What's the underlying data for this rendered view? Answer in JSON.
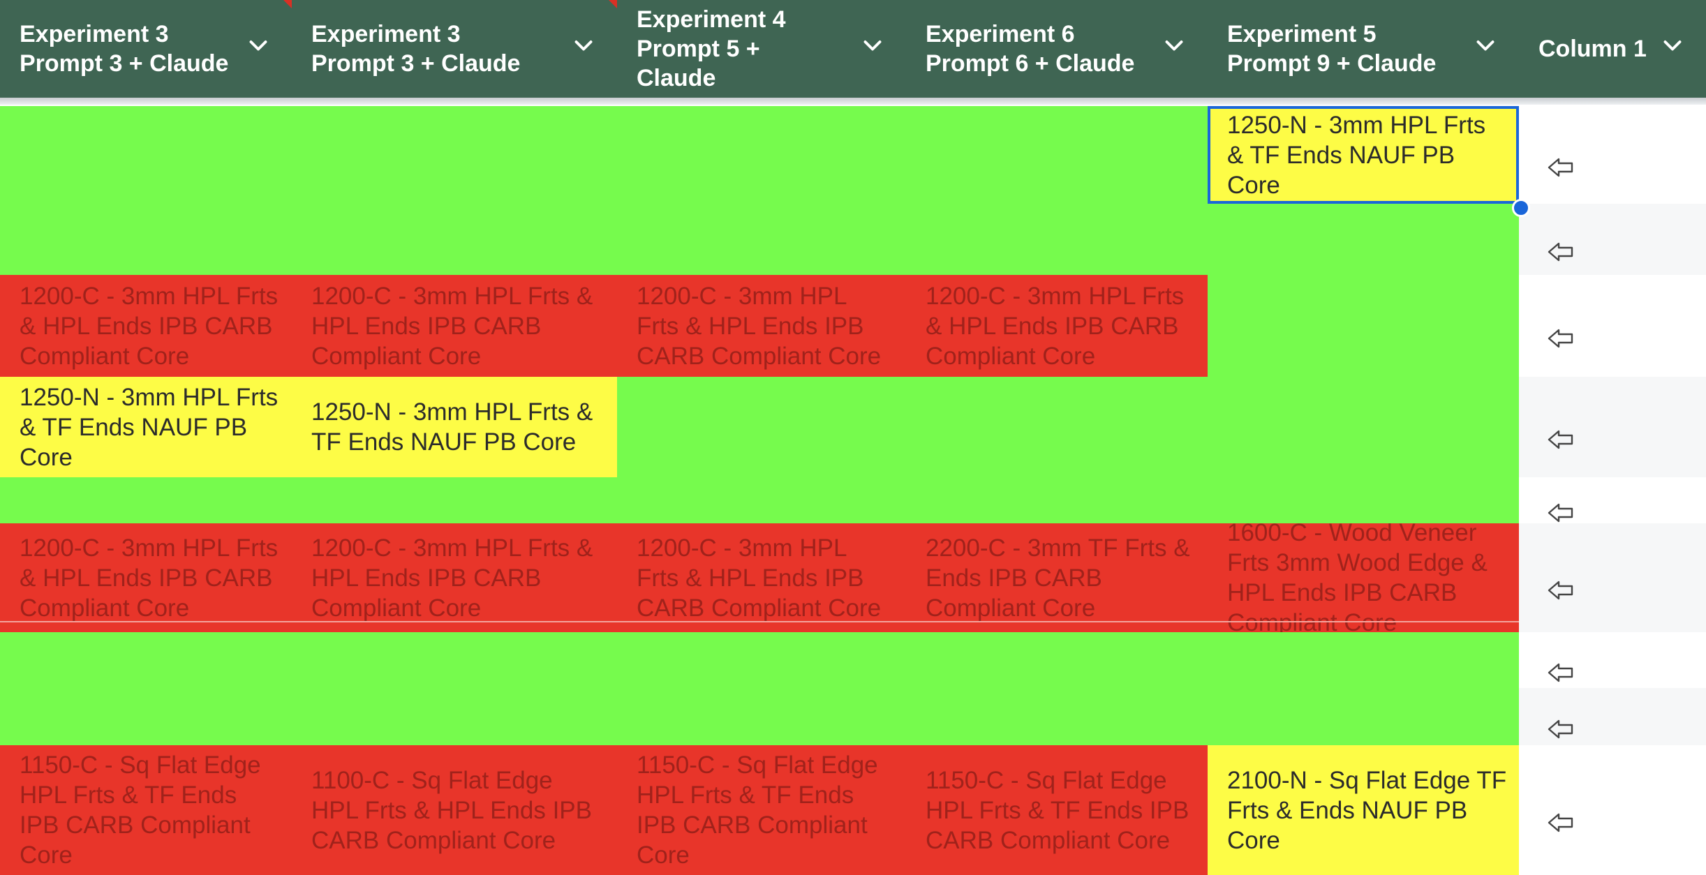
{
  "colors": {
    "header_bg": "#3f6553",
    "match_green": "#76fb4d",
    "mismatch_red": "#e8352a",
    "partial_yellow": "#fdfc46",
    "selection_blue": "#1a66d9"
  },
  "columns": [
    {
      "title": "Experiment 3\nPrompt 3 + Claude",
      "icon": "chevron-down-icon"
    },
    {
      "title": "Experiment 3\nPrompt 3 + Claude",
      "icon": "chevron-down-icon"
    },
    {
      "title": "Experiment 4\nPrompt 5 +\nClaude",
      "icon": "chevron-down-icon"
    },
    {
      "title": "Experiment 6\nPrompt 6 + Claude",
      "icon": "chevron-down-icon"
    },
    {
      "title": "Experiment 5\nPrompt 9 + Claude",
      "icon": "chevron-down-icon"
    },
    {
      "title": "Column 1",
      "icon": "chevron-down-icon"
    }
  ],
  "rows": [
    {
      "cells": [
        "",
        "",
        "",
        "",
        "1250-N - 3mm HPL Frts & TF Ends NAUF PB Core"
      ],
      "status": [
        "green",
        "green",
        "green",
        "green",
        "yellow"
      ]
    },
    {
      "cells": [
        "",
        "",
        "",
        "",
        ""
      ],
      "status": [
        "green",
        "green",
        "green",
        "green",
        "green"
      ]
    },
    {
      "cells": [
        "1200-C - 3mm HPL Frts & HPL Ends IPB CARB Compliant Core",
        "1200-C - 3mm HPL Frts & HPL Ends IPB CARB Compliant Core",
        "1200-C - 3mm HPL Frts & HPL Ends IPB CARB Compliant Core",
        "1200-C - 3mm HPL Frts & HPL Ends IPB CARB Compliant Core",
        ""
      ],
      "status": [
        "red",
        "red",
        "red",
        "red",
        "green"
      ]
    },
    {
      "cells": [
        "1250-N - 3mm HPL Frts & TF Ends NAUF PB Core",
        "1250-N - 3mm HPL Frts & TF Ends NAUF PB Core",
        "",
        "",
        ""
      ],
      "status": [
        "yellow",
        "yellow",
        "green",
        "green",
        "green"
      ]
    },
    {
      "cells": [
        "",
        "",
        "",
        "",
        ""
      ],
      "status": [
        "green",
        "green",
        "green",
        "green",
        "green"
      ]
    },
    {
      "cells": [
        "1200-C - 3mm HPL Frts & HPL Ends IPB CARB Compliant Core",
        "1200-C - 3mm HPL Frts & HPL Ends IPB CARB Compliant Core",
        "1200-C - 3mm HPL Frts & HPL Ends IPB CARB Compliant Core",
        "2200-C - 3mm TF Frts & Ends IPB CARB Compliant Core",
        "1600-C - Wood Veneer Frts 3mm Wood Edge & HPL Ends IPB CARB Compliant Core"
      ],
      "status": [
        "red",
        "red",
        "red",
        "red",
        "red"
      ]
    },
    {
      "cells": [
        "",
        "",
        "",
        "",
        ""
      ],
      "status": [
        "green",
        "green",
        "green",
        "green",
        "green"
      ]
    },
    {
      "cells": [
        "",
        "",
        "",
        "",
        ""
      ],
      "status": [
        "green",
        "green",
        "green",
        "green",
        "green"
      ]
    },
    {
      "cells": [
        "1150-C - Sq Flat Edge HPL Frts & TF Ends IPB CARB Compliant Core",
        "1100-C - Sq Flat Edge HPL Frts & HPL Ends IPB CARB Compliant Core",
        "1150-C - Sq Flat Edge HPL Frts & TF Ends IPB CARB Compliant Core",
        "1150-C - Sq Flat Edge HPL Frts & TF Ends IPB CARB Compliant Core",
        "2100-N - Sq Flat Edge TF Frts & Ends NAUF PB Core"
      ],
      "status": [
        "red",
        "red",
        "red",
        "red",
        "yellow"
      ]
    }
  ],
  "arrow_icon": "arrow-left-outline-icon"
}
